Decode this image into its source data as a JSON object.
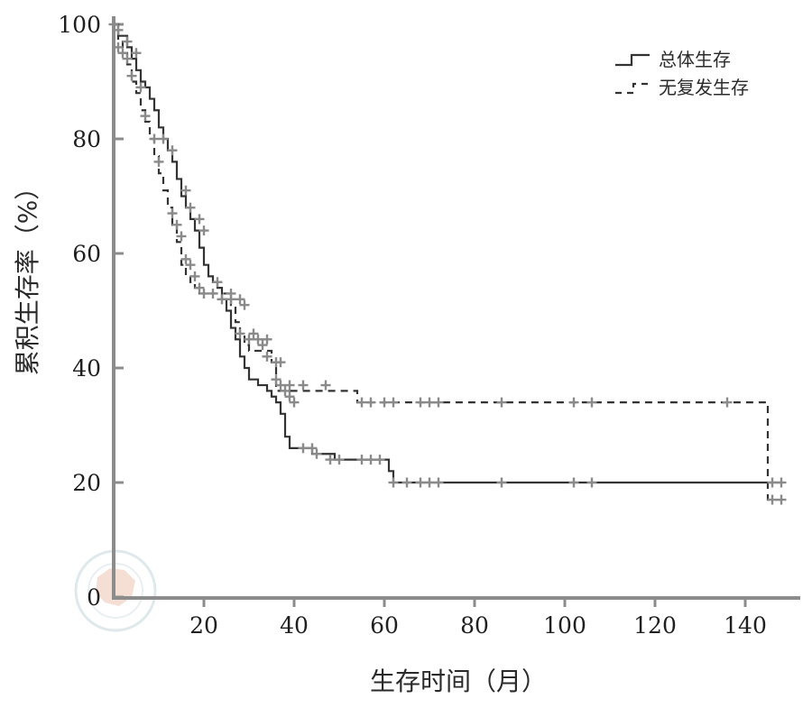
{
  "chart_data": {
    "type": "line",
    "xlabel": "生存时间（月）",
    "ylabel": "累积生存率（%）",
    "xlim": [
      0,
      152
    ],
    "ylim": [
      0,
      100
    ],
    "x_ticks": [
      20,
      40,
      60,
      80,
      100,
      120,
      140
    ],
    "y_ticks": [
      0,
      20,
      40,
      60,
      80,
      100
    ],
    "grid": false,
    "legend_position": "top-right",
    "series": [
      {
        "name": "总体生存",
        "style": "solid",
        "color": "#333333",
        "steps": [
          [
            0,
            100
          ],
          [
            1,
            98
          ],
          [
            3,
            96
          ],
          [
            4,
            94
          ],
          [
            5,
            92
          ],
          [
            6,
            90
          ],
          [
            7,
            89
          ],
          [
            8,
            87
          ],
          [
            9,
            85
          ],
          [
            10,
            82
          ],
          [
            11,
            80
          ],
          [
            12,
            78
          ],
          [
            13,
            76
          ],
          [
            14,
            73
          ],
          [
            15,
            70
          ],
          [
            16,
            68
          ],
          [
            17,
            66
          ],
          [
            18,
            64
          ],
          [
            19,
            61
          ],
          [
            20,
            58
          ],
          [
            21,
            56
          ],
          [
            22,
            55
          ],
          [
            23,
            54
          ],
          [
            24,
            52
          ],
          [
            25,
            50
          ],
          [
            26,
            47
          ],
          [
            27,
            45
          ],
          [
            28,
            42
          ],
          [
            29,
            40
          ],
          [
            30,
            38
          ],
          [
            32,
            37
          ],
          [
            34,
            36
          ],
          [
            35,
            35
          ],
          [
            36,
            34
          ],
          [
            37,
            32
          ],
          [
            38,
            28
          ],
          [
            39,
            26
          ],
          [
            44,
            25
          ],
          [
            49,
            24
          ],
          [
            59,
            24
          ],
          [
            61,
            22
          ],
          [
            62,
            20
          ],
          [
            148,
            20
          ]
        ],
        "censored": [
          [
            1,
            99
          ],
          [
            3,
            97
          ],
          [
            5,
            95
          ],
          [
            11,
            80
          ],
          [
            13,
            78
          ],
          [
            16,
            71
          ],
          [
            17,
            68
          ],
          [
            19,
            66
          ],
          [
            20,
            64
          ],
          [
            23,
            55
          ],
          [
            26,
            53
          ],
          [
            28,
            52
          ],
          [
            29,
            51
          ],
          [
            31,
            46
          ],
          [
            33,
            44
          ],
          [
            34,
            42
          ],
          [
            36,
            38
          ],
          [
            37,
            37
          ],
          [
            38,
            36
          ],
          [
            39,
            35
          ],
          [
            40,
            34
          ],
          [
            42,
            26
          ],
          [
            44,
            26
          ],
          [
            45,
            25
          ],
          [
            48,
            24
          ],
          [
            50,
            24
          ],
          [
            55,
            24
          ],
          [
            57,
            24
          ],
          [
            59,
            24
          ],
          [
            62,
            20
          ],
          [
            65,
            20
          ],
          [
            68,
            20
          ],
          [
            70,
            20
          ],
          [
            72,
            20
          ],
          [
            86,
            20
          ],
          [
            102,
            20
          ],
          [
            106,
            20
          ],
          [
            146,
            20
          ],
          [
            148,
            20
          ]
        ]
      },
      {
        "name": "无复发生存",
        "style": "dashed",
        "color": "#333333",
        "steps": [
          [
            0,
            100
          ],
          [
            1,
            97
          ],
          [
            2,
            95
          ],
          [
            3,
            93
          ],
          [
            4,
            90
          ],
          [
            5,
            88
          ],
          [
            6,
            85
          ],
          [
            7,
            83
          ],
          [
            8,
            80
          ],
          [
            9,
            77
          ],
          [
            10,
            74
          ],
          [
            11,
            71
          ],
          [
            12,
            68
          ],
          [
            13,
            65
          ],
          [
            14,
            62
          ],
          [
            15,
            58
          ],
          [
            16,
            56
          ],
          [
            17,
            55
          ],
          [
            18,
            54
          ],
          [
            19,
            53
          ],
          [
            26,
            51
          ],
          [
            27,
            48
          ],
          [
            28,
            46
          ],
          [
            29,
            44
          ],
          [
            30,
            43
          ],
          [
            35,
            41
          ],
          [
            36,
            36
          ],
          [
            54,
            34
          ],
          [
            144,
            34
          ],
          [
            145,
            17
          ],
          [
            148,
            17
          ]
        ],
        "censored": [
          [
            0,
            100
          ],
          [
            1,
            96
          ],
          [
            2,
            95
          ],
          [
            3,
            94
          ],
          [
            4,
            91
          ],
          [
            6,
            89
          ],
          [
            7,
            84
          ],
          [
            9,
            80
          ],
          [
            10,
            76
          ],
          [
            13,
            67
          ],
          [
            14,
            65
          ],
          [
            15,
            63
          ],
          [
            16,
            59
          ],
          [
            17,
            58
          ],
          [
            18,
            56
          ],
          [
            19,
            54
          ],
          [
            20,
            53
          ],
          [
            22,
            53
          ],
          [
            24,
            52
          ],
          [
            26,
            52
          ],
          [
            28,
            46
          ],
          [
            30,
            45
          ],
          [
            32,
            45
          ],
          [
            34,
            45
          ],
          [
            36,
            41
          ],
          [
            37,
            41
          ],
          [
            39,
            37
          ],
          [
            42,
            37
          ],
          [
            47,
            37
          ],
          [
            55,
            34
          ],
          [
            57,
            34
          ],
          [
            60,
            34
          ],
          [
            62,
            34
          ],
          [
            68,
            34
          ],
          [
            70,
            34
          ],
          [
            72,
            34
          ],
          [
            86,
            34
          ],
          [
            102,
            34
          ],
          [
            106,
            34
          ],
          [
            136,
            34
          ],
          [
            146,
            17
          ],
          [
            148,
            17
          ]
        ]
      }
    ]
  },
  "legend": {
    "items": [
      {
        "label": "总体生存",
        "style": "solid"
      },
      {
        "label": "无复发生存",
        "style": "dashed"
      }
    ]
  },
  "axes": {
    "x_title": "生存时间（月）",
    "y_title": "累积生存率（%）"
  }
}
